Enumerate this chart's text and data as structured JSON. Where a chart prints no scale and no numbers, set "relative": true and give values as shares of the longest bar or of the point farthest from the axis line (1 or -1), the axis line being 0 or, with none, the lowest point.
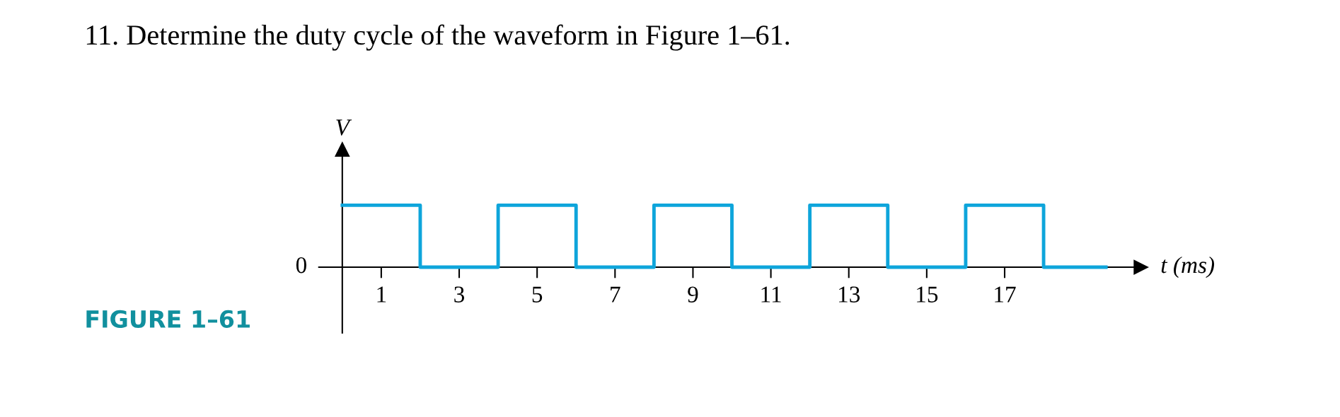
{
  "chart_data": {
    "type": "step",
    "title": "11. Determine the duty cycle of the waveform in Figure 1–61.",
    "xlabel": "t (ms)",
    "ylabel": "V",
    "relative": true,
    "x": [
      0,
      2,
      4,
      6,
      8,
      10,
      12,
      14,
      16,
      18,
      19.6
    ],
    "series": [
      {
        "color": "#0ea5db",
        "values": [
          1,
          0,
          1,
          0,
          1,
          0,
          1,
          0,
          1,
          0,
          0
        ]
      }
    ],
    "xlim": [
      -0.6,
      20.5
    ],
    "xticks": [
      1,
      3,
      5,
      7,
      9,
      11,
      13,
      15,
      17
    ],
    "annotations": [
      "0",
      "FIGURE 1–61"
    ],
    "grid": false,
    "legend": false,
    "marker": "none",
    "line_style": "solid"
  }
}
